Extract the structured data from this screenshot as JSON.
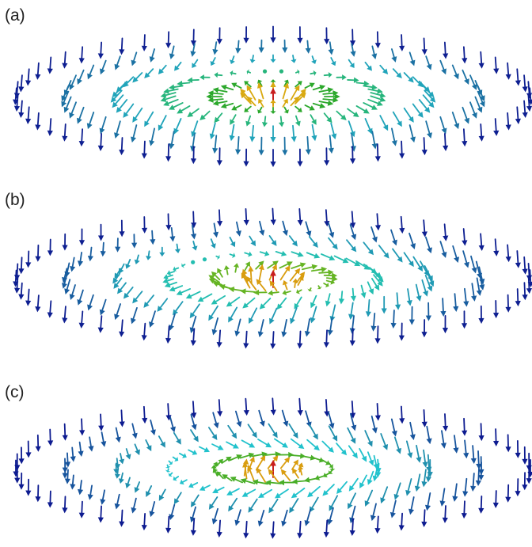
{
  "panels": [
    {
      "label": "(a)",
      "rings": [
        {
          "count": 6,
          "radius_fraction": 0.0,
          "theta_deg": 0,
          "twist_deg": 0
        },
        {
          "count": 14,
          "radius_fraction": 0.11,
          "theta_deg": 45,
          "twist_deg": 0
        },
        {
          "count": 28,
          "radius_fraction": 0.23,
          "theta_deg": 90,
          "twist_deg": 0
        },
        {
          "count": 40,
          "radius_fraction": 0.41,
          "theta_deg": 105,
          "twist_deg": 0
        },
        {
          "count": 48,
          "radius_fraction": 0.61,
          "theta_deg": 135,
          "twist_deg": 0
        },
        {
          "count": 56,
          "radius_fraction": 0.81,
          "theta_deg": 155,
          "twist_deg": 0
        },
        {
          "count": 60,
          "radius_fraction": 1.0,
          "theta_deg": 175,
          "twist_deg": 0
        }
      ]
    },
    {
      "label": "(b)",
      "rings": [
        {
          "count": 6,
          "radius_fraction": 0.0,
          "theta_deg": 0,
          "twist_deg": 45
        },
        {
          "count": 14,
          "radius_fraction": 0.11,
          "theta_deg": 40,
          "twist_deg": 45
        },
        {
          "count": 28,
          "radius_fraction": 0.23,
          "theta_deg": 80,
          "twist_deg": 45
        },
        {
          "count": 40,
          "radius_fraction": 0.41,
          "theta_deg": 115,
          "twist_deg": 45
        },
        {
          "count": 48,
          "radius_fraction": 0.61,
          "theta_deg": 140,
          "twist_deg": 45
        },
        {
          "count": 56,
          "radius_fraction": 0.81,
          "theta_deg": 160,
          "twist_deg": 45
        },
        {
          "count": 60,
          "radius_fraction": 1.0,
          "theta_deg": 175,
          "twist_deg": 45
        }
      ]
    },
    {
      "label": "(c)",
      "rings": [
        {
          "count": 6,
          "radius_fraction": 0.0,
          "theta_deg": 0,
          "twist_deg": 90
        },
        {
          "count": 14,
          "radius_fraction": 0.11,
          "theta_deg": 40,
          "twist_deg": 90
        },
        {
          "count": 28,
          "radius_fraction": 0.23,
          "theta_deg": 85,
          "twist_deg": 90
        },
        {
          "count": 40,
          "radius_fraction": 0.41,
          "theta_deg": 120,
          "twist_deg": 90
        },
        {
          "count": 48,
          "radius_fraction": 0.61,
          "theta_deg": 145,
          "twist_deg": 90
        },
        {
          "count": 56,
          "radius_fraction": 0.81,
          "theta_deg": 162,
          "twist_deg": 90
        },
        {
          "count": 60,
          "radius_fraction": 1.0,
          "theta_deg": 176,
          "twist_deg": 90
        }
      ]
    }
  ],
  "colors": {
    "core_up": "#c81e1e",
    "orange": "#d9860f",
    "yellow": "#d8cc10",
    "green": "#2ca82c",
    "cyan": "#22c2cc",
    "teal": "#1f86a8",
    "down": "#0a0a8c"
  }
}
